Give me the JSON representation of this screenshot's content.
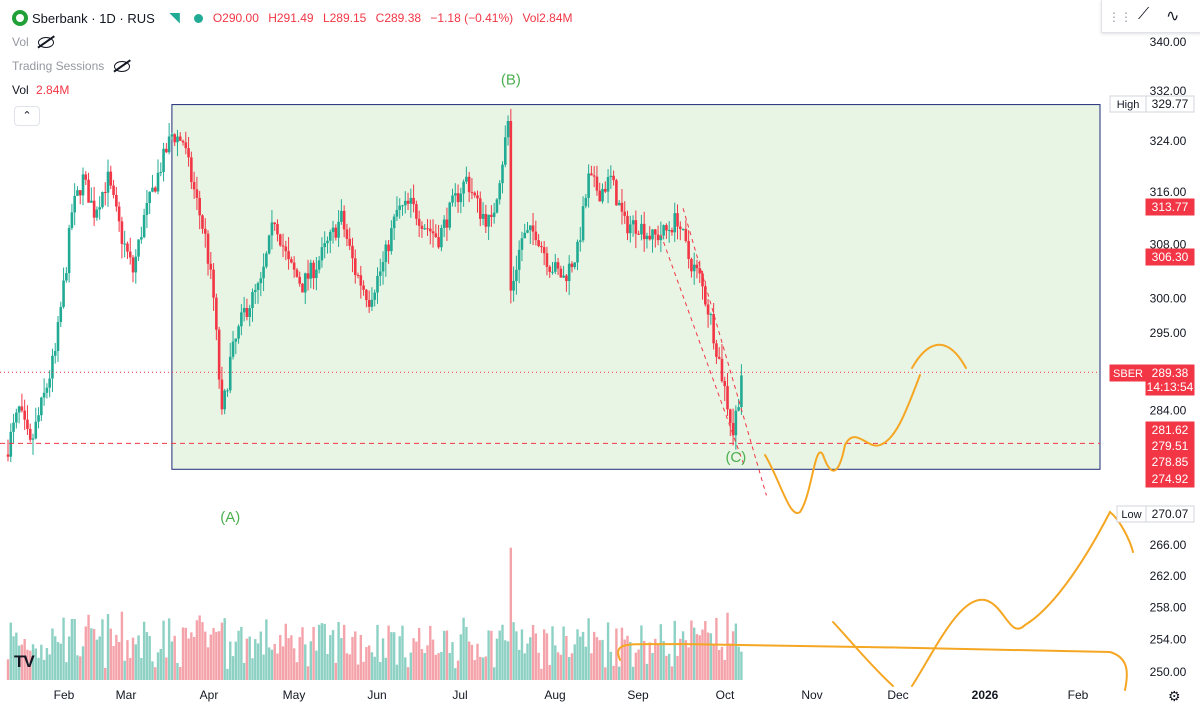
{
  "header": {
    "symbol": "Sberbank · 1D · RUS",
    "open": "O290.00",
    "high": "H291.49",
    "low": "L289.15",
    "close": "C289.38",
    "change": "−1.18 (−0.41%)",
    "vol": "Vol2.84M"
  },
  "indicators": {
    "vol_label": "Vol",
    "sessions_label": "Trading Sessions",
    "vol_value_label": "Vol",
    "vol_value": "2.84M"
  },
  "colors": {
    "up": "#22ab94",
    "down": "#f23645",
    "up_volume": "#8dd1c4",
    "down_volume": "#f5a3aa",
    "box_fill": "#e8f5e4",
    "box_border": "#1e2a78",
    "wave_label": "#4caf50",
    "drawing": "#f5a623",
    "grid_line": "#f0f3fa"
  },
  "chart_data": {
    "type": "candlestick",
    "title": "",
    "symbol": "Sberbank",
    "interval": "1D",
    "exchange": "RUS",
    "y_axis": {
      "min": 248,
      "max": 341,
      "scale": "log",
      "ticks": [
        "340.00",
        "332.00",
        "324.00",
        "316.00",
        "308.00",
        "300.00",
        "295.00",
        "284.00",
        "266.00",
        "262.00",
        "258.00",
        "254.00",
        "250.00"
      ]
    },
    "x_axis": {
      "ticks": [
        "Feb",
        "Mar",
        "Apr",
        "May",
        "Jun",
        "Jul",
        "Aug",
        "Sep",
        "Oct",
        "Nov",
        "Dec",
        "2026",
        "Feb"
      ]
    },
    "price_path": [
      {
        "date": "2025-01-20",
        "price": 278
      },
      {
        "date": "2025-01-25",
        "price": 284
      },
      {
        "date": "2025-01-29",
        "price": 279
      },
      {
        "date": "2025-02-03",
        "price": 286
      },
      {
        "date": "2025-02-07",
        "price": 292
      },
      {
        "date": "2025-02-11",
        "price": 305
      },
      {
        "date": "2025-02-13",
        "price": 313
      },
      {
        "date": "2025-02-17",
        "price": 318
      },
      {
        "date": "2025-02-21",
        "price": 313
      },
      {
        "date": "2025-02-26",
        "price": 318
      },
      {
        "date": "2025-03-03",
        "price": 309
      },
      {
        "date": "2025-03-07",
        "price": 304
      },
      {
        "date": "2025-03-11",
        "price": 312
      },
      {
        "date": "2025-03-17",
        "price": 320
      },
      {
        "date": "2025-03-21",
        "price": 325
      },
      {
        "date": "2025-03-25",
        "price": 324
      },
      {
        "date": "2025-03-28",
        "price": 318
      },
      {
        "date": "2025-04-02",
        "price": 309
      },
      {
        "date": "2025-04-05",
        "price": 300
      },
      {
        "date": "2025-04-08",
        "price": 283
      },
      {
        "date": "2025-04-11",
        "price": 291
      },
      {
        "date": "2025-04-16",
        "price": 298
      },
      {
        "date": "2025-04-22",
        "price": 302
      },
      {
        "date": "2025-04-27",
        "price": 312
      },
      {
        "date": "2025-05-02",
        "price": 305
      },
      {
        "date": "2025-05-07",
        "price": 302
      },
      {
        "date": "2025-05-12",
        "price": 305
      },
      {
        "date": "2025-05-16",
        "price": 308
      },
      {
        "date": "2025-05-21",
        "price": 312
      },
      {
        "date": "2025-05-26",
        "price": 304
      },
      {
        "date": "2025-05-31",
        "price": 300
      },
      {
        "date": "2025-06-05",
        "price": 305
      },
      {
        "date": "2025-06-10",
        "price": 313
      },
      {
        "date": "2025-06-15",
        "price": 314
      },
      {
        "date": "2025-06-20",
        "price": 311
      },
      {
        "date": "2025-06-25",
        "price": 309
      },
      {
        "date": "2025-06-30",
        "price": 314
      },
      {
        "date": "2025-07-05",
        "price": 318
      },
      {
        "date": "2025-07-10",
        "price": 313
      },
      {
        "date": "2025-07-14",
        "price": 311
      },
      {
        "date": "2025-07-18",
        "price": 321
      },
      {
        "date": "2025-07-20",
        "price": 327
      },
      {
        "date": "2025-07-21",
        "price": 301
      },
      {
        "date": "2025-07-25",
        "price": 309
      },
      {
        "date": "2025-07-30",
        "price": 310
      },
      {
        "date": "2025-08-04",
        "price": 305
      },
      {
        "date": "2025-08-09",
        "price": 303
      },
      {
        "date": "2025-08-14",
        "price": 307
      },
      {
        "date": "2025-08-18",
        "price": 318
      },
      {
        "date": "2025-08-22",
        "price": 316
      },
      {
        "date": "2025-08-26",
        "price": 318
      },
      {
        "date": "2025-08-31",
        "price": 311
      },
      {
        "date": "2025-09-05",
        "price": 311
      },
      {
        "date": "2025-09-10",
        "price": 309
      },
      {
        "date": "2025-09-15",
        "price": 310
      },
      {
        "date": "2025-09-19",
        "price": 312
      },
      {
        "date": "2025-09-23",
        "price": 306
      },
      {
        "date": "2025-09-27",
        "price": 303
      },
      {
        "date": "2025-10-01",
        "price": 297
      },
      {
        "date": "2025-10-04",
        "price": 291
      },
      {
        "date": "2025-10-07",
        "price": 285
      },
      {
        "date": "2025-10-09",
        "price": 281
      },
      {
        "date": "2025-10-11",
        "price": 286
      },
      {
        "date": "2025-10-12",
        "price": 289.38
      }
    ],
    "price_labels": [
      {
        "label": "High",
        "value": "329.77"
      },
      {
        "label": "",
        "value": "313.77"
      },
      {
        "label": "",
        "value": "306.30"
      },
      {
        "label": "SBER",
        "value": "289.38",
        "sub": "14:13:54"
      },
      {
        "label": "",
        "value": "281.62"
      },
      {
        "label": "",
        "value": "279.51"
      },
      {
        "label": "",
        "value": "278.85"
      },
      {
        "label": "",
        "value": "274.92"
      },
      {
        "label": "Low",
        "value": "270.07"
      }
    ],
    "wave_labels": [
      {
        "text": "(A)",
        "date": "2025-04-10",
        "price": 269
      },
      {
        "text": "(B)",
        "date": "2025-07-20",
        "price": 333
      },
      {
        "text": "(C)",
        "date": "2025-10-09",
        "price": 277
      }
    ],
    "range_box": {
      "start": "2025-03-20",
      "end": "2026-03-05",
      "top": 329.77,
      "bottom": 276
    },
    "volume_note": "volume histogram bars beneath price, green/red by candle direction"
  }
}
